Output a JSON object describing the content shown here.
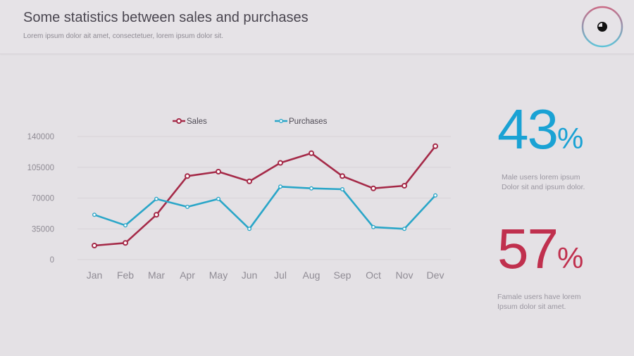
{
  "header": {
    "title": "Some statistics between sales and purchases",
    "subtitle": "Lorem ipsum dolor ait amet, consectetuer, lorem ipsum dolor sit."
  },
  "badge": {
    "icon": "pie-chart-icon",
    "ring_colors": [
      "#c96b86",
      "#5fc3d8"
    ]
  },
  "colors": {
    "sales": "#a52a48",
    "purchases": "#2aa6c8",
    "male_accent": "#1aa2d4",
    "female_accent": "#c0304e",
    "axis_text": "#8f8b94",
    "grid": "#d7d3d8"
  },
  "chart_data": {
    "type": "line",
    "categories": [
      "Jan",
      "Feb",
      "Mar",
      "Apr",
      "May",
      "Jun",
      "Jul",
      "Aug",
      "Sep",
      "Oct",
      "Nov",
      "Dev"
    ],
    "series": [
      {
        "name": "Sales",
        "values": [
          16000,
          19000,
          51000,
          95000,
          100000,
          89000,
          110000,
          121000,
          95000,
          81000,
          84000,
          129000
        ]
      },
      {
        "name": "Purchases",
        "values": [
          51000,
          39000,
          69000,
          60000,
          69000,
          35000,
          83000,
          81000,
          80000,
          37000,
          35000,
          73000
        ]
      }
    ],
    "y_ticks": [
      0,
      35000,
      70000,
      105000,
      140000
    ],
    "ylim": [
      0,
      140000
    ],
    "title": "",
    "xlabel": "",
    "ylabel": "",
    "legend_position": "top-center",
    "grid": true
  },
  "stats": {
    "male": {
      "value": "43",
      "unit": "%",
      "line1": "Male users lorem ipsum",
      "line2": "Dolor sit and ipsum dolor."
    },
    "female": {
      "value": "57",
      "unit": "%",
      "line1": "Famale users have lorem",
      "line2": "Ipsum dolor sit amet."
    }
  }
}
